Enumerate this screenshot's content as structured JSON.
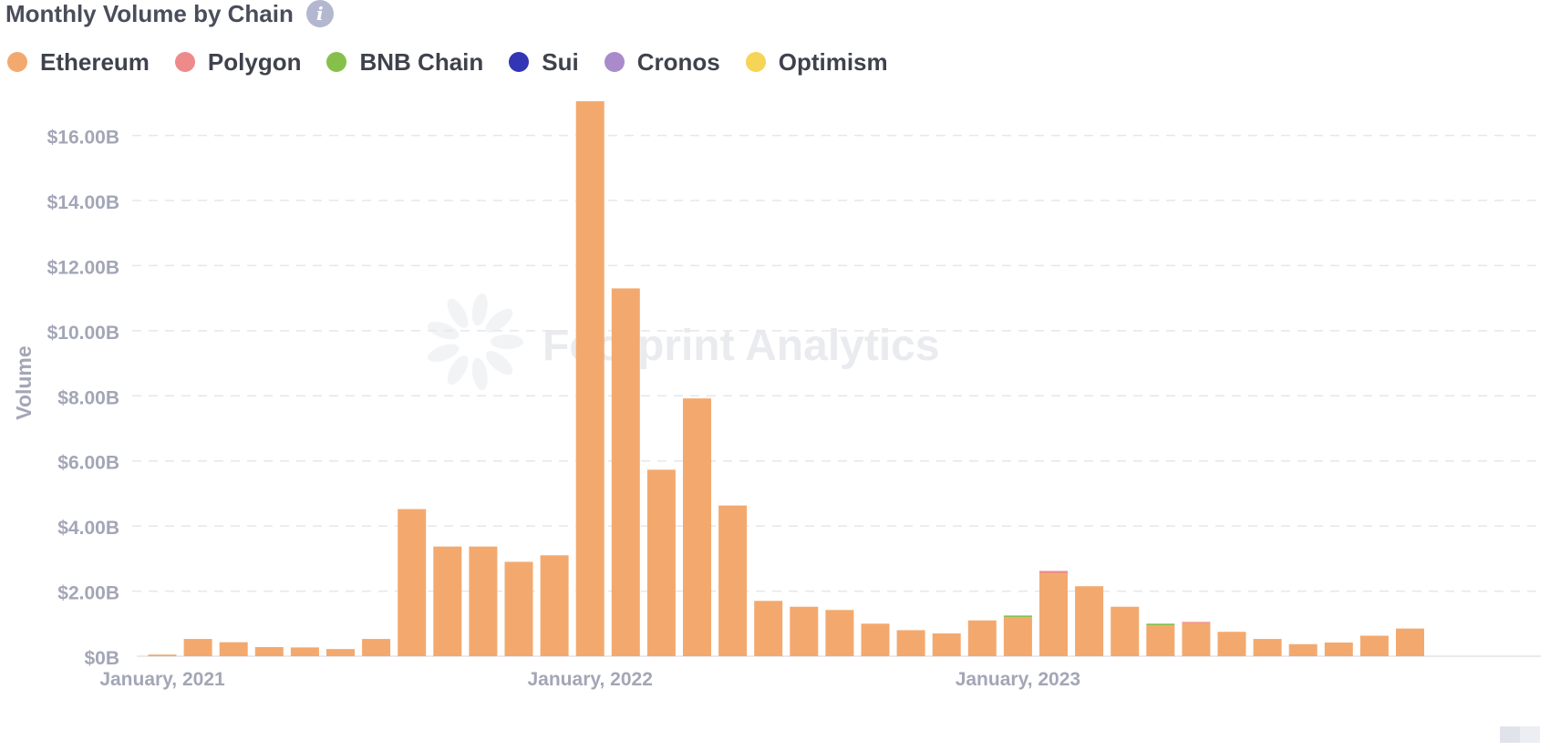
{
  "header": {
    "title": "Monthly Volume by Chain",
    "info_icon": "info-icon"
  },
  "chart_data": {
    "type": "bar",
    "stacked": true,
    "title": "Monthly Volume by Chain",
    "xlabel": "",
    "ylabel": "Volume",
    "ylim": [
      0,
      16.8
    ],
    "y_unit": "B",
    "yticks": [
      {
        "value": 0,
        "label": "$0B"
      },
      {
        "value": 2,
        "label": "$2.00B"
      },
      {
        "value": 4,
        "label": "$4.00B"
      },
      {
        "value": 6,
        "label": "$6.00B"
      },
      {
        "value": 8,
        "label": "$8.00B"
      },
      {
        "value": 10,
        "label": "$10.00B"
      },
      {
        "value": 12,
        "label": "$12.00B"
      },
      {
        "value": 14,
        "label": "$14.00B"
      },
      {
        "value": 16,
        "label": "$16.00B"
      }
    ],
    "xticks": [
      {
        "index": 0,
        "label": "January, 2021"
      },
      {
        "index": 12,
        "label": "January, 2022"
      },
      {
        "index": 24,
        "label": "January, 2023"
      }
    ],
    "grid": "horizontal-dashed",
    "legend": "top-left",
    "watermark": "Footprint Analytics",
    "categories": [
      "2021-01",
      "2021-02",
      "2021-03",
      "2021-04",
      "2021-05",
      "2021-06",
      "2021-07",
      "2021-08",
      "2021-09",
      "2021-10",
      "2021-11",
      "2021-12",
      "2022-01",
      "2022-02",
      "2022-03",
      "2022-04",
      "2022-05",
      "2022-06",
      "2022-07",
      "2022-08",
      "2022-09",
      "2022-10",
      "2022-11",
      "2022-12",
      "2023-01",
      "2023-02",
      "2023-03",
      "2023-04",
      "2023-05",
      "2023-06",
      "2023-07",
      "2023-08",
      "2023-09",
      "2023-10",
      "2023-11",
      "2023-12",
      "2024-01"
    ],
    "series": [
      {
        "name": "Ethereum",
        "color": "#f3a96e",
        "values": [
          0.05,
          0.53,
          0.43,
          0.28,
          0.27,
          0.22,
          0.53,
          4.52,
          3.37,
          3.37,
          2.9,
          3.1,
          17.05,
          11.3,
          5.73,
          7.92,
          4.63,
          1.7,
          1.52,
          1.42,
          1.0,
          0.8,
          0.7,
          1.1,
          1.2,
          2.55,
          2.15,
          1.52,
          0.95,
          1.02,
          0.75,
          0.53,
          0.37,
          0.42,
          0.63,
          0.85,
          0
        ]
      },
      {
        "name": "Polygon",
        "color": "#ef8a8a",
        "values": [
          0,
          0,
          0,
          0,
          0,
          0,
          0,
          0,
          0,
          0,
          0,
          0,
          0,
          0,
          0,
          0,
          0,
          0,
          0,
          0,
          0,
          0,
          0,
          0,
          0,
          0.07,
          0,
          0,
          0,
          0.02,
          0,
          0,
          0,
          0,
          0,
          0,
          0
        ]
      },
      {
        "name": "BNB Chain",
        "color": "#86c04a",
        "values": [
          0,
          0,
          0,
          0,
          0,
          0,
          0,
          0,
          0,
          0,
          0,
          0,
          0,
          0,
          0,
          0,
          0,
          0,
          0,
          0,
          0,
          0,
          0,
          0,
          0.05,
          0,
          0,
          0,
          0.05,
          0,
          0,
          0,
          0,
          0,
          0,
          0,
          0
        ]
      },
      {
        "name": "Sui",
        "color": "#3236b4",
        "values": [
          0,
          0,
          0,
          0,
          0,
          0,
          0,
          0,
          0,
          0,
          0,
          0,
          0,
          0,
          0,
          0,
          0,
          0,
          0,
          0,
          0,
          0,
          0,
          0,
          0,
          0,
          0,
          0,
          0,
          0,
          0,
          0,
          0,
          0,
          0,
          0,
          0
        ]
      },
      {
        "name": "Cronos",
        "color": "#a98bcc",
        "values": [
          0,
          0,
          0,
          0,
          0,
          0,
          0,
          0,
          0,
          0,
          0,
          0,
          0,
          0,
          0,
          0,
          0,
          0,
          0,
          0,
          0,
          0,
          0,
          0,
          0,
          0,
          0,
          0,
          0,
          0,
          0,
          0,
          0,
          0,
          0,
          0,
          0
        ]
      },
      {
        "name": "Optimism",
        "color": "#f6d455",
        "values": [
          0,
          0,
          0,
          0,
          0,
          0,
          0,
          0,
          0,
          0,
          0,
          0,
          0,
          0,
          0,
          0,
          0,
          0,
          0,
          0,
          0,
          0,
          0,
          0,
          0,
          0,
          0,
          0,
          0,
          0,
          0,
          0,
          0,
          0,
          0,
          0,
          0
        ]
      }
    ]
  }
}
